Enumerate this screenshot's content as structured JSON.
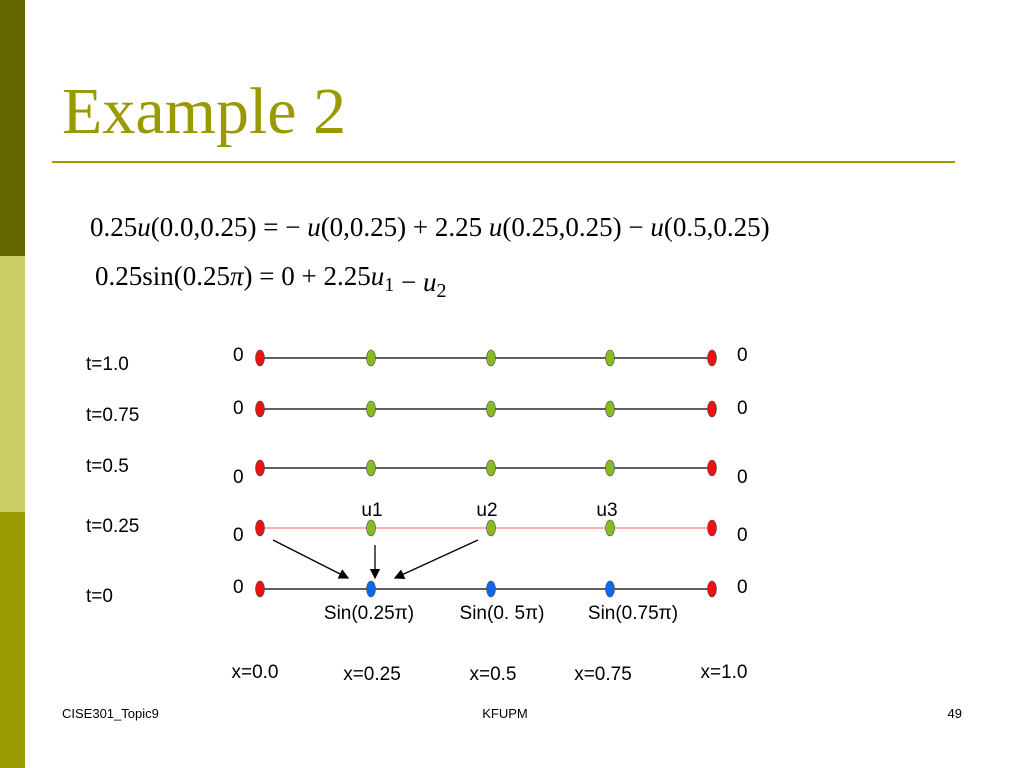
{
  "header": {
    "title": "Example 2"
  },
  "equations": [
    [
      "0.25",
      {
        "i": "u"
      },
      "(0.0,0.25) = − ",
      {
        "i": "u"
      },
      "(0,0.25) + 2.25 ",
      {
        "i": "u"
      },
      "(0.25,0.25) − ",
      {
        "i": "u"
      },
      "(0.5,0.25)"
    ],
    [
      "0.25sin(0.25",
      {
        "i": "π"
      },
      ") = 0 + 2.25",
      {
        "i": "u"
      },
      {
        "sub": "1"
      },
      " − ",
      {
        "i": "u"
      },
      {
        "sub": "2"
      }
    ]
  ],
  "diagram": {
    "rows": [
      {
        "label": "t=1.0",
        "left": "0",
        "right": "0"
      },
      {
        "label": "t=0.75",
        "left": "0",
        "right": "0"
      },
      {
        "label": "t=0.5",
        "left": "0",
        "right": "0"
      },
      {
        "label": "t=0.25",
        "left": "0",
        "right": "0"
      },
      {
        "label": "t=0",
        "left": "0",
        "right": "0"
      }
    ],
    "unknowns": [
      "u1",
      "u2",
      "u3"
    ],
    "initial": [
      "Sin(0.25π)",
      "Sin(0. 5π)",
      "Sin(0.75π)"
    ],
    "columns": [
      "x=0.0",
      "x=0.25",
      "x=0.5",
      "x=0.75",
      "x=1.0"
    ]
  },
  "footer": {
    "left": "CISE301_Topic9",
    "center": "KFUPM",
    "right": "49"
  }
}
